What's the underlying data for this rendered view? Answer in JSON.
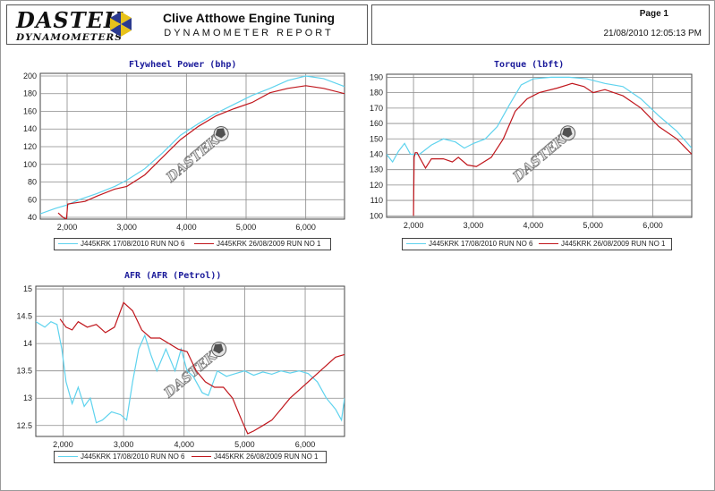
{
  "header": {
    "logo_text": "DASTEK",
    "logo_sub": "DYNAMOMETERS",
    "company": "Clive Atthowe Engine Tuning",
    "report_title": "DYNAMOMETER REPORT",
    "page_label": "Page 1",
    "datetime": "21/08/2010 12:05:13 PM",
    "watermark": "DASTEK"
  },
  "colors": {
    "series_a": "#5fd3ee",
    "series_b": "#c0161c",
    "grid": "#8a8a8a",
    "title": "#1a1a9a"
  },
  "chart_data": [
    {
      "id": "power",
      "type": "line",
      "title": "Flywheel Power (bhp)",
      "xlim": [
        1550,
        6650
      ],
      "ylim": [
        38,
        203
      ],
      "x_ticks": [
        2000,
        3000,
        4000,
        5000,
        6000
      ],
      "x_tick_labels": [
        "2,000",
        "3,000",
        "4,000",
        "5,000",
        "6,000"
      ],
      "y_ticks": [
        40,
        60,
        80,
        100,
        120,
        140,
        160,
        180,
        200
      ],
      "y_tick_labels": [
        "40",
        "60",
        "80",
        "100",
        "120",
        "140",
        "160",
        "180",
        "200"
      ],
      "series": [
        {
          "name": "J445KRK 17/08/2010 RUN NO 6",
          "color": "#5fd3ee",
          "x": [
            1550,
            1800,
            2000,
            2200,
            2500,
            2800,
            3000,
            3300,
            3600,
            3900,
            4200,
            4500,
            4800,
            5100,
            5400,
            5700,
            6000,
            6300,
            6650
          ],
          "y": [
            44,
            50,
            54,
            60,
            67,
            75,
            82,
            95,
            113,
            133,
            146,
            158,
            168,
            178,
            186,
            195,
            200,
            197,
            188
          ]
        },
        {
          "name": "J445KRK 26/08/2009 RUN NO 1",
          "color": "#c0161c",
          "x": [
            1850,
            1930,
            1990,
            2010,
            2100,
            2300,
            2500,
            2800,
            3000,
            3300,
            3600,
            3900,
            4200,
            4500,
            4800,
            5100,
            5400,
            5700,
            6000,
            6300,
            6650
          ],
          "y": [
            45,
            40,
            38,
            55,
            56,
            58,
            64,
            72,
            75,
            88,
            108,
            128,
            143,
            155,
            163,
            170,
            181,
            186,
            189,
            186,
            180
          ]
        }
      ]
    },
    {
      "id": "torque",
      "type": "line",
      "title": "Torque (lbft)",
      "xlim": [
        1550,
        6650
      ],
      "ylim": [
        99,
        192
      ],
      "x_ticks": [
        2000,
        3000,
        4000,
        5000,
        6000
      ],
      "x_tick_labels": [
        "2,000",
        "3,000",
        "4,000",
        "5,000",
        "6,000"
      ],
      "y_ticks": [
        100,
        110,
        120,
        130,
        140,
        150,
        160,
        170,
        180,
        190
      ],
      "y_tick_labels": [
        "100",
        "110",
        "120",
        "130",
        "140",
        "150",
        "160",
        "170",
        "180",
        "190"
      ],
      "series": [
        {
          "name": "J445KRK 17/08/2010 RUN NO 6",
          "color": "#5fd3ee",
          "x": [
            1550,
            1650,
            1750,
            1850,
            1950,
            2100,
            2300,
            2500,
            2700,
            2850,
            3000,
            3200,
            3400,
            3600,
            3800,
            4000,
            4300,
            4600,
            4900,
            5200,
            5500,
            5800,
            6100,
            6400,
            6650
          ],
          "y": [
            140,
            135,
            142,
            147,
            140,
            140,
            146,
            150,
            148,
            144,
            147,
            150,
            158,
            172,
            185,
            189,
            190,
            190,
            189,
            186,
            184,
            176,
            165,
            155,
            144
          ]
        },
        {
          "name": "J445KRK 26/08/2009 RUN NO 1",
          "color": "#c0161c",
          "x": [
            2000,
            2010,
            2030,
            2060,
            2100,
            2200,
            2300,
            2500,
            2650,
            2750,
            2900,
            3050,
            3300,
            3500,
            3700,
            3900,
            4100,
            4400,
            4650,
            4850,
            5000,
            5200,
            5500,
            5800,
            6100,
            6400,
            6650
          ],
          "y": [
            100,
            138,
            141,
            141,
            138,
            131,
            137,
            137,
            135,
            138,
            133,
            132,
            138,
            150,
            168,
            176,
            180,
            183,
            186,
            184,
            180,
            182,
            178,
            170,
            158,
            150,
            140
          ]
        }
      ]
    },
    {
      "id": "afr",
      "type": "line",
      "title": "AFR (AFR (Petrol))",
      "xlim": [
        1550,
        6650
      ],
      "ylim": [
        12.3,
        15.05
      ],
      "x_ticks": [
        2000,
        3000,
        4000,
        5000,
        6000
      ],
      "x_tick_labels": [
        "2,000",
        "3,000",
        "4,000",
        "5,000",
        "6,000"
      ],
      "y_ticks": [
        12.5,
        13,
        13.5,
        14,
        14.5,
        15
      ],
      "y_tick_labels": [
        "12.5",
        "13",
        "13.5",
        "14",
        "14.5",
        "15"
      ],
      "series": [
        {
          "name": "J445KRK 17/08/2010 RUN NO 6",
          "color": "#5fd3ee",
          "x": [
            1550,
            1700,
            1800,
            1900,
            1980,
            2050,
            2150,
            2250,
            2350,
            2450,
            2550,
            2650,
            2800,
            2950,
            3050,
            3150,
            3250,
            3350,
            3450,
            3550,
            3700,
            3850,
            3950,
            4050,
            4150,
            4300,
            4400,
            4550,
            4700,
            4850,
            5000,
            5150,
            5300,
            5450,
            5600,
            5750,
            5900,
            6050,
            6200,
            6350,
            6500,
            6600,
            6650
          ],
          "y": [
            14.4,
            14.3,
            14.4,
            14.35,
            13.9,
            13.3,
            12.9,
            13.2,
            12.85,
            13.0,
            12.55,
            12.6,
            12.75,
            12.7,
            12.6,
            13.3,
            13.9,
            14.15,
            13.8,
            13.5,
            13.9,
            13.5,
            13.9,
            13.5,
            13.4,
            13.1,
            13.05,
            13.5,
            13.4,
            13.45,
            13.5,
            13.42,
            13.48,
            13.44,
            13.5,
            13.46,
            13.5,
            13.45,
            13.3,
            13.0,
            12.8,
            12.6,
            13.0
          ]
        },
        {
          "name": "J445KRK 26/08/2009 RUN NO 1",
          "color": "#c0161c",
          "x": [
            1950,
            2050,
            2150,
            2250,
            2400,
            2550,
            2700,
            2850,
            3000,
            3150,
            3300,
            3450,
            3600,
            3750,
            3900,
            4050,
            4200,
            4350,
            4500,
            4650,
            4800,
            4950,
            5050,
            5150,
            5300,
            5450,
            5600,
            5750,
            5900,
            6050,
            6200,
            6350,
            6500,
            6650
          ],
          "y": [
            14.45,
            14.3,
            14.25,
            14.4,
            14.3,
            14.35,
            14.2,
            14.3,
            14.75,
            14.6,
            14.25,
            14.1,
            14.1,
            14.0,
            13.9,
            13.85,
            13.5,
            13.3,
            13.2,
            13.2,
            13.0,
            12.6,
            12.35,
            12.4,
            12.5,
            12.6,
            12.8,
            13.0,
            13.15,
            13.3,
            13.45,
            13.6,
            13.75,
            13.8
          ]
        }
      ]
    }
  ]
}
